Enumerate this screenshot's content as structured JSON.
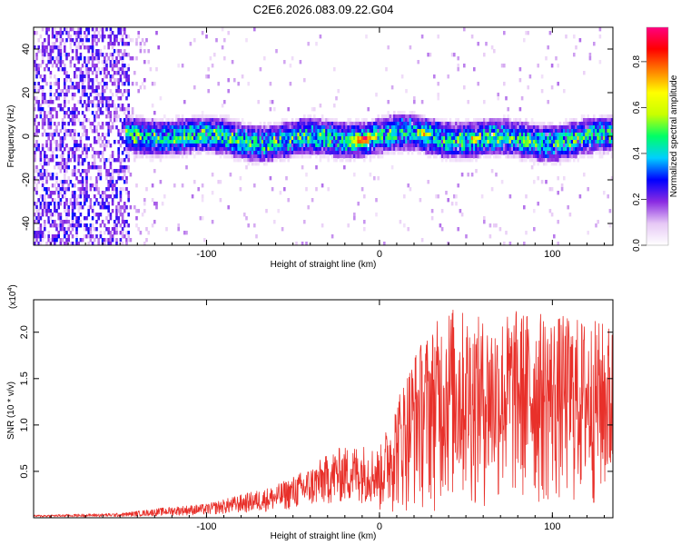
{
  "title": "C2E6.2026.083.09.22.G04",
  "chart_data": [
    {
      "type": "heatmap",
      "name": "spectrogram",
      "xlabel": "Height of straight line (km)",
      "ylabel": "Frequency (Hz)",
      "xlim": [
        -200,
        135
      ],
      "ylim": [
        -50,
        50
      ],
      "xticks": [
        -100,
        0,
        100
      ],
      "xtick_labels": [
        "-100",
        "0",
        "100"
      ],
      "yticks": [
        -40,
        -20,
        0,
        20,
        40
      ],
      "ytick_labels": [
        "-40",
        "-20",
        "0",
        "20",
        "40"
      ],
      "colorbar": {
        "label": "Normalized spectral amplitude",
        "range": [
          0,
          0.95
        ],
        "ticks": [
          0.0,
          0.2,
          0.4,
          0.6,
          0.8
        ],
        "tick_labels": [
          "0.0",
          "0.2",
          "0.4",
          "0.6",
          "0.8"
        ],
        "colors": [
          "#ffffff",
          "#e6c8f5",
          "#8a2be2",
          "#0000ff",
          "#00cfff",
          "#00ff66",
          "#c8ff00",
          "#ffff00",
          "#ff8000",
          "#ff0000",
          "#ff0080"
        ]
      },
      "noise_region_end_km": -145,
      "signal_band_center_hz": 0,
      "signal_band_halfwidth_hz": 8,
      "peak_position_km": -10
    },
    {
      "type": "line",
      "name": "snr",
      "xlabel": "Height of straight line (km)",
      "ylabel": "SNR (10 * v/v)",
      "scale_label": "(x10",
      "scale_exp": "4",
      "xlim": [
        -200,
        135
      ],
      "ylim": [
        0,
        2.35
      ],
      "xticks": [
        -100,
        0,
        100
      ],
      "xtick_labels": [
        "-100",
        "0",
        "100"
      ],
      "yticks": [
        0.5,
        1.0,
        1.5,
        2.0
      ],
      "ytick_labels": [
        "0.5",
        "1.0",
        "1.5",
        "2.0"
      ],
      "color": "#e8302a",
      "envelope": [
        {
          "x": -200,
          "y": 0.03
        },
        {
          "x": -150,
          "y": 0.05
        },
        {
          "x": -120,
          "y": 0.12
        },
        {
          "x": -100,
          "y": 0.15
        },
        {
          "x": -80,
          "y": 0.25
        },
        {
          "x": -60,
          "y": 0.35
        },
        {
          "x": -40,
          "y": 0.55
        },
        {
          "x": -25,
          "y": 0.75
        },
        {
          "x": -10,
          "y": 0.8
        },
        {
          "x": 0,
          "y": 0.75
        },
        {
          "x": 10,
          "y": 1.3
        },
        {
          "x": 20,
          "y": 1.8
        },
        {
          "x": 40,
          "y": 2.3
        },
        {
          "x": 60,
          "y": 2.15
        },
        {
          "x": 80,
          "y": 2.25
        },
        {
          "x": 100,
          "y": 2.2
        },
        {
          "x": 120,
          "y": 2.15
        },
        {
          "x": 135,
          "y": 2.1
        }
      ]
    }
  ]
}
